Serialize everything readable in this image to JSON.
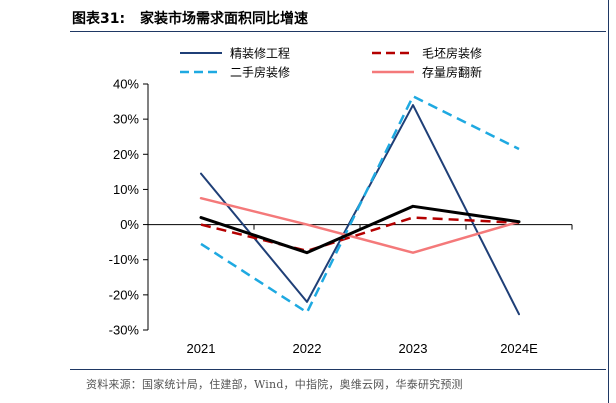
{
  "header": {
    "figure_label": "图表31:",
    "title": "家装市场需求面积同比增速"
  },
  "source": "资料来源：国家统计局，住建部，Wind，中指院，奥维云网，华泰研究预测",
  "chart_data": {
    "type": "line",
    "categories": [
      "2021",
      "2022",
      "2023",
      "2024E"
    ],
    "ylim": [
      -30,
      40
    ],
    "yticks": [
      -30,
      -20,
      -10,
      0,
      10,
      20,
      30,
      40
    ],
    "ytick_labels": [
      "-30%",
      "-20%",
      "-10%",
      "0%",
      "10%",
      "20%",
      "30%",
      "40%"
    ],
    "grid": false,
    "legend_position": "top",
    "series": [
      {
        "name": "精装修工程",
        "values": [
          14.5,
          -22,
          34,
          -25.5
        ],
        "color": "#1f3f77",
        "dash": "solid",
        "width": 2
      },
      {
        "name": "毛坯房装修",
        "values": [
          0,
          -7.5,
          2,
          0.5
        ],
        "color": "#b40000",
        "dash": "dashed",
        "width": 2.5
      },
      {
        "name": "二手房装修",
        "values": [
          -5.5,
          -25,
          36.5,
          21.5
        ],
        "color": "#1ea9e1",
        "dash": "dashed",
        "width": 2.5
      },
      {
        "name": "存量房翻新",
        "values": [
          7.5,
          0,
          -8,
          0.8
        ],
        "color": "#f4797a",
        "dash": "solid",
        "width": 2.5
      },
      {
        "name": "",
        "values": [
          2,
          -8,
          5.2,
          0.8
        ],
        "color": "#000000",
        "dash": "solid",
        "width": 3
      }
    ]
  }
}
